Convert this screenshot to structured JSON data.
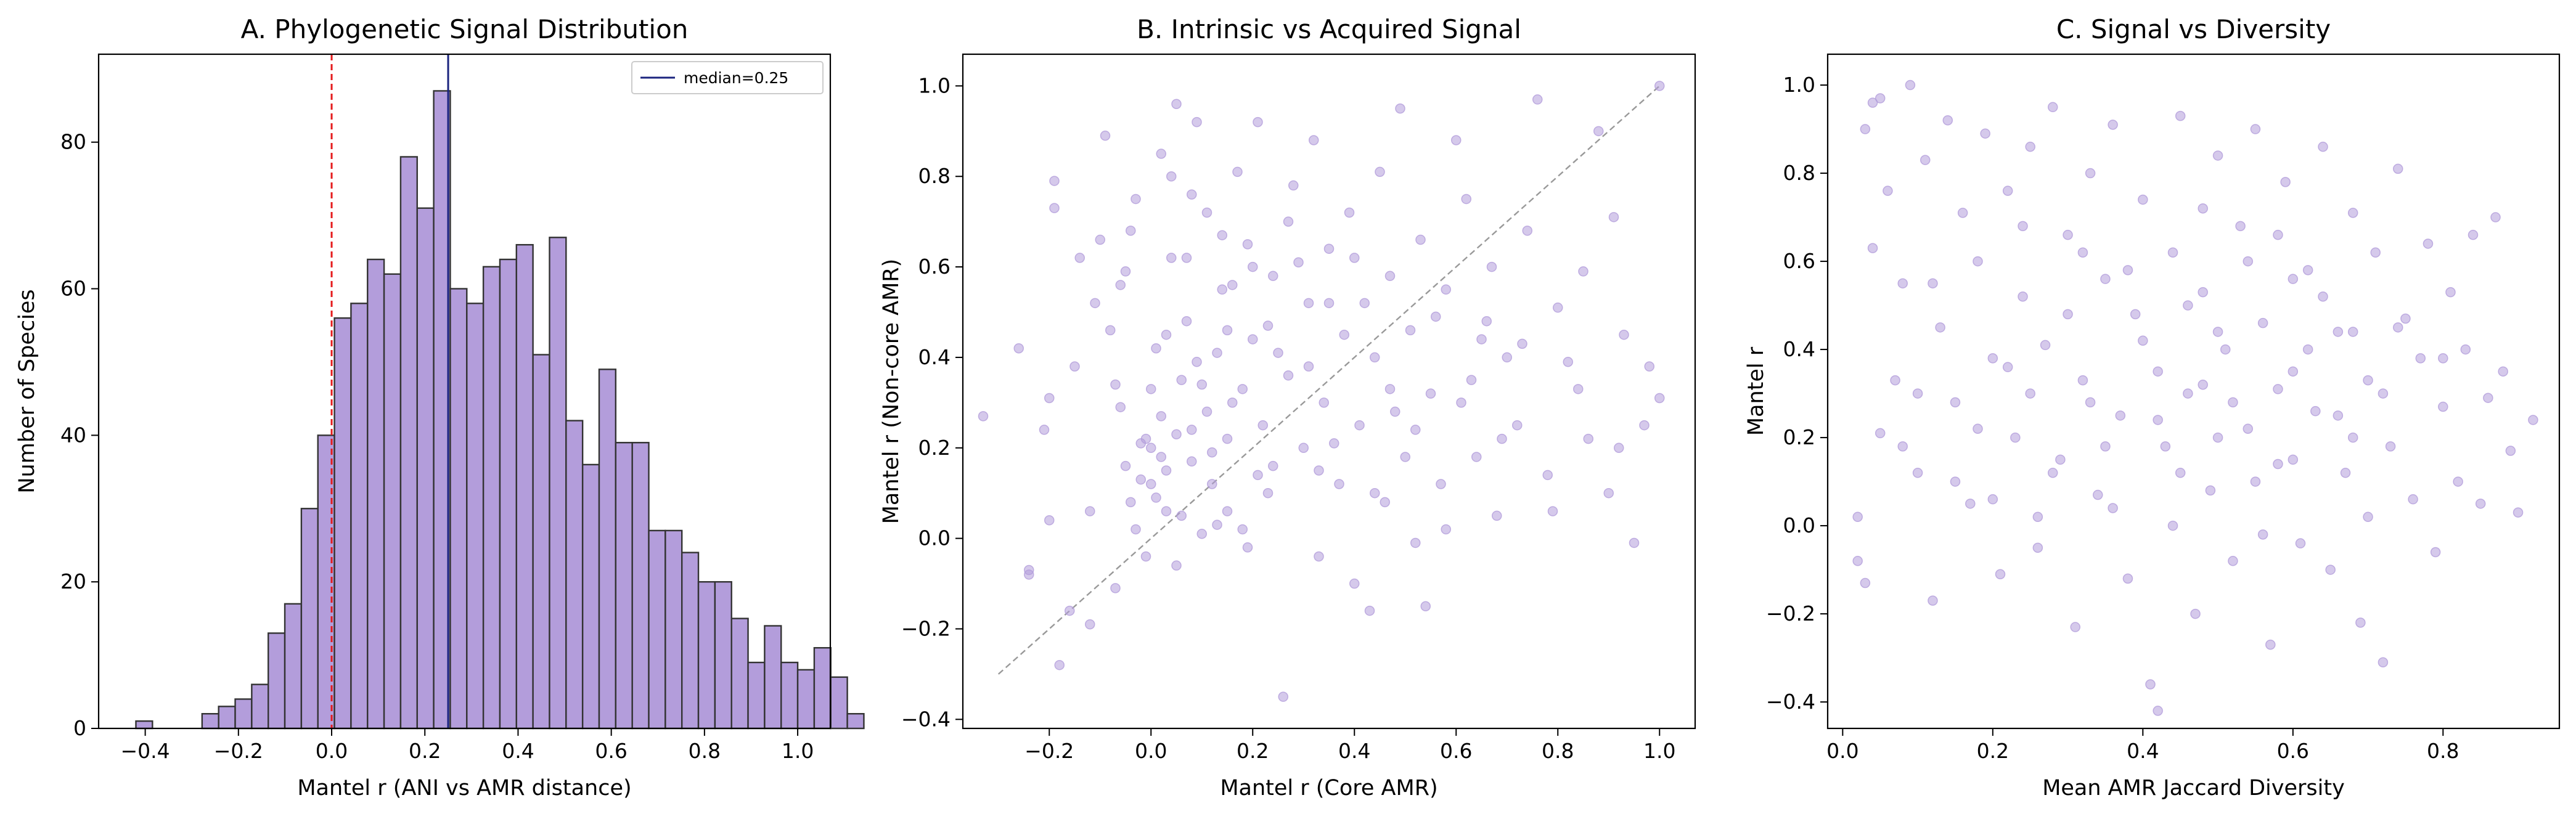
{
  "colors": {
    "bar_fill": "#b39ddb",
    "bar_edge": "#333333",
    "point": "#b39ddb",
    "zero_line": "#e41a1c",
    "median_line": "#1a237e",
    "diagonal": "#999999"
  },
  "chart_data": [
    {
      "type": "bar",
      "subtype": "histogram",
      "title": "A. Phylogenetic Signal Distribution",
      "xlabel": "Mantel r (ANI vs AMR distance)",
      "ylabel": "Number of Species",
      "xlim": [
        -0.5,
        1.07
      ],
      "ylim": [
        0,
        92
      ],
      "xticks": [
        -0.4,
        -0.2,
        0.0,
        0.2,
        0.4,
        0.6,
        0.8,
        1.0
      ],
      "xtick_labels": [
        "−0.4",
        "−0.2",
        "0.0",
        "0.2",
        "0.4",
        "0.6",
        "0.8",
        "1.0"
      ],
      "yticks": [
        0,
        20,
        40,
        60,
        80
      ],
      "ytick_labels": [
        "0",
        "20",
        "40",
        "60",
        "80"
      ],
      "bin_start": -0.42,
      "bin_width": 0.0355,
      "values": [
        1,
        0,
        0,
        0,
        2,
        3,
        4,
        6,
        13,
        17,
        30,
        40,
        56,
        58,
        64,
        62,
        78,
        71,
        87,
        60,
        58,
        63,
        64,
        66,
        51,
        67,
        42,
        36,
        49,
        39,
        39,
        27,
        27,
        24,
        20,
        20,
        15,
        9,
        14,
        9,
        8,
        11,
        7,
        2
      ],
      "vlines": [
        {
          "x": 0.0,
          "style": "dashed",
          "color": "#e41a1c"
        },
        {
          "x": 0.25,
          "style": "solid",
          "color": "#1a237e",
          "label": "median=0.25"
        }
      ],
      "legend": {
        "position": "upper right",
        "entries": [
          "median=0.25"
        ]
      },
      "grid": false
    },
    {
      "type": "scatter",
      "title": "B. Intrinsic vs Acquired Signal",
      "xlabel": "Mantel r (Core AMR)",
      "ylabel": "Mantel r (Non-core AMR)",
      "xlim": [
        -0.37,
        1.07
      ],
      "ylim": [
        -0.42,
        1.07
      ],
      "xticks": [
        -0.2,
        0.0,
        0.2,
        0.4,
        0.6,
        0.8,
        1.0
      ],
      "xtick_labels": [
        "−0.2",
        "0.0",
        "0.2",
        "0.4",
        "0.6",
        "0.8",
        "1.0"
      ],
      "yticks": [
        -0.4,
        -0.2,
        0.0,
        0.2,
        0.4,
        0.6,
        0.8,
        1.0
      ],
      "ytick_labels": [
        "−0.4",
        "−0.2",
        "0.0",
        "0.2",
        "0.4",
        "0.6",
        "0.8",
        "1.0"
      ],
      "diagonal": {
        "from": [
          -0.3,
          -0.3
        ],
        "to": [
          1.0,
          1.0
        ],
        "style": "dashed"
      },
      "grid": false,
      "points": [
        [
          -0.33,
          0.27
        ],
        [
          -0.26,
          0.42
        ],
        [
          -0.24,
          -0.08
        ],
        [
          -0.24,
          -0.07
        ],
        [
          -0.21,
          0.24
        ],
        [
          -0.2,
          0.31
        ],
        [
          -0.19,
          0.73
        ],
        [
          -0.19,
          0.79
        ],
        [
          -0.2,
          0.04
        ],
        [
          -0.18,
          -0.28
        ],
        [
          -0.16,
          -0.16
        ],
        [
          -0.15,
          0.38
        ],
        [
          -0.14,
          0.62
        ],
        [
          -0.12,
          0.06
        ],
        [
          -0.11,
          0.52
        ],
        [
          -0.1,
          0.66
        ],
        [
          -0.09,
          0.89
        ],
        [
          -0.08,
          0.46
        ],
        [
          -0.07,
          0.34
        ],
        [
          -0.06,
          0.29
        ],
        [
          -0.05,
          0.16
        ],
        [
          -0.05,
          0.59
        ],
        [
          -0.04,
          0.68
        ],
        [
          -0.03,
          0.02
        ],
        [
          -0.03,
          0.75
        ],
        [
          -0.02,
          0.13
        ],
        [
          -0.01,
          0.22
        ],
        [
          0.0,
          0.2
        ],
        [
          0.0,
          0.33
        ],
        [
          0.01,
          0.09
        ],
        [
          0.02,
          0.27
        ],
        [
          0.03,
          0.15
        ],
        [
          0.03,
          0.45
        ],
        [
          0.04,
          0.8
        ],
        [
          0.05,
          0.96
        ],
        [
          0.06,
          0.05
        ],
        [
          0.07,
          0.62
        ],
        [
          0.08,
          0.24
        ],
        [
          0.09,
          0.92
        ],
        [
          0.1,
          0.34
        ],
        [
          0.11,
          0.72
        ],
        [
          0.12,
          0.12
        ],
        [
          0.13,
          0.41
        ],
        [
          0.14,
          0.55
        ],
        [
          0.15,
          0.06
        ],
        [
          0.16,
          0.3
        ],
        [
          0.17,
          0.81
        ],
        [
          0.18,
          0.02
        ],
        [
          0.19,
          0.65
        ],
        [
          0.2,
          0.44
        ],
        [
          0.21,
          0.92
        ],
        [
          0.22,
          0.25
        ],
        [
          0.23,
          0.1
        ],
        [
          0.24,
          0.58
        ],
        [
          0.26,
          -0.35
        ],
        [
          0.27,
          0.36
        ],
        [
          0.28,
          0.78
        ],
        [
          0.3,
          0.2
        ],
        [
          0.31,
          0.52
        ],
        [
          0.32,
          0.88
        ],
        [
          0.33,
          -0.04
        ],
        [
          0.34,
          0.3
        ],
        [
          0.35,
          0.64
        ],
        [
          0.37,
          0.12
        ],
        [
          0.38,
          0.45
        ],
        [
          0.39,
          0.72
        ],
        [
          0.4,
          -0.1
        ],
        [
          0.41,
          0.25
        ],
        [
          0.42,
          0.52
        ],
        [
          0.43,
          -0.16
        ],
        [
          0.44,
          0.4
        ],
        [
          0.45,
          0.81
        ],
        [
          0.46,
          0.08
        ],
        [
          0.47,
          0.58
        ],
        [
          0.48,
          0.28
        ],
        [
          0.49,
          0.95
        ],
        [
          0.5,
          0.18
        ],
        [
          0.51,
          0.46
        ],
        [
          0.52,
          -0.01
        ],
        [
          0.53,
          0.66
        ],
        [
          0.54,
          -0.15
        ],
        [
          0.55,
          0.32
        ],
        [
          0.57,
          0.12
        ],
        [
          0.58,
          0.55
        ],
        [
          0.6,
          0.88
        ],
        [
          0.61,
          0.3
        ],
        [
          0.62,
          0.75
        ],
        [
          0.64,
          0.18
        ],
        [
          0.65,
          0.44
        ],
        [
          0.67,
          0.6
        ],
        [
          0.68,
          0.05
        ],
        [
          0.7,
          0.4
        ],
        [
          0.72,
          0.25
        ],
        [
          0.74,
          0.68
        ],
        [
          0.76,
          0.97
        ],
        [
          0.78,
          0.14
        ],
        [
          0.8,
          0.51
        ],
        [
          0.82,
          0.39
        ],
        [
          0.84,
          0.33
        ],
        [
          0.86,
          0.22
        ],
        [
          0.88,
          0.9
        ],
        [
          0.9,
          0.1
        ],
        [
          0.91,
          0.71
        ],
        [
          0.93,
          0.45
        ],
        [
          0.95,
          -0.01
        ],
        [
          0.97,
          0.25
        ],
        [
          1.0,
          0.31
        ],
        [
          1.0,
          1.0
        ],
        [
          0.02,
          0.18
        ],
        [
          0.05,
          0.23
        ],
        [
          -0.02,
          0.21
        ],
        [
          0.08,
          0.17
        ],
        [
          0.0,
          0.12
        ],
        [
          0.11,
          0.28
        ],
        [
          0.06,
          0.35
        ],
        [
          -0.04,
          0.08
        ],
        [
          0.15,
          0.22
        ],
        [
          0.03,
          0.06
        ],
        [
          0.09,
          0.39
        ],
        [
          0.12,
          0.19
        ],
        [
          0.18,
          0.33
        ],
        [
          0.07,
          0.48
        ],
        [
          0.14,
          0.67
        ],
        [
          0.21,
          0.14
        ],
        [
          0.25,
          0.41
        ],
        [
          0.16,
          0.56
        ],
        [
          0.01,
          0.42
        ],
        [
          -0.06,
          0.56
        ],
        [
          0.04,
          0.62
        ],
        [
          0.13,
          0.03
        ],
        [
          0.19,
          -0.02
        ],
        [
          0.23,
          0.47
        ],
        [
          0.29,
          0.61
        ],
        [
          0.36,
          0.21
        ],
        [
          0.44,
          0.1
        ],
        [
          0.56,
          0.49
        ],
        [
          0.63,
          0.35
        ],
        [
          0.69,
          0.22
        ],
        [
          0.73,
          0.43
        ],
        [
          0.79,
          0.06
        ],
        [
          0.85,
          0.59
        ],
        [
          0.92,
          0.2
        ],
        [
          0.98,
          0.38
        ],
        [
          0.27,
          0.7
        ],
        [
          0.33,
          0.15
        ],
        [
          0.4,
          0.62
        ],
        [
          0.47,
          0.33
        ],
        [
          0.52,
          0.24
        ],
        [
          0.58,
          0.02
        ],
        [
          0.66,
          0.48
        ],
        [
          0.1,
          0.01
        ],
        [
          -0.01,
          -0.04
        ],
        [
          -0.07,
          -0.11
        ],
        [
          -0.12,
          -0.19
        ],
        [
          0.05,
          -0.06
        ],
        [
          0.15,
          0.46
        ],
        [
          0.2,
          0.6
        ],
        [
          0.08,
          0.76
        ],
        [
          0.02,
          0.85
        ],
        [
          0.24,
          0.16
        ],
        [
          0.31,
          0.38
        ],
        [
          0.35,
          0.52
        ]
      ]
    },
    {
      "type": "scatter",
      "title": "C. Signal vs Diversity",
      "xlabel": "Mean AMR Jaccard Diversity",
      "ylabel": "Mantel r",
      "xlim": [
        -0.02,
        0.955
      ],
      "ylim": [
        -0.46,
        1.07
      ],
      "xticks": [
        0.0,
        0.2,
        0.4,
        0.6,
        0.8
      ],
      "xtick_labels": [
        "0.0",
        "0.2",
        "0.4",
        "0.6",
        "0.8"
      ],
      "yticks": [
        -0.4,
        -0.2,
        0.0,
        0.2,
        0.4,
        0.6,
        0.8,
        1.0
      ],
      "ytick_labels": [
        "−0.4",
        "−0.2",
        "0.0",
        "0.2",
        "0.4",
        "0.6",
        "0.8",
        "1.0"
      ],
      "grid": false,
      "points": [
        [
          0.02,
          0.02
        ],
        [
          0.02,
          -0.08
        ],
        [
          0.03,
          -0.13
        ],
        [
          0.03,
          0.9
        ],
        [
          0.04,
          0.96
        ],
        [
          0.04,
          0.63
        ],
        [
          0.05,
          0.21
        ],
        [
          0.05,
          0.97
        ],
        [
          0.06,
          0.76
        ],
        [
          0.07,
          0.33
        ],
        [
          0.08,
          0.55
        ],
        [
          0.09,
          1.0
        ],
        [
          0.1,
          0.12
        ],
        [
          0.11,
          0.83
        ],
        [
          0.12,
          -0.17
        ],
        [
          0.13,
          0.45
        ],
        [
          0.14,
          0.92
        ],
        [
          0.15,
          0.28
        ],
        [
          0.16,
          0.71
        ],
        [
          0.17,
          0.05
        ],
        [
          0.18,
          0.6
        ],
        [
          0.19,
          0.89
        ],
        [
          0.2,
          0.38
        ],
        [
          0.21,
          -0.11
        ],
        [
          0.22,
          0.76
        ],
        [
          0.23,
          0.2
        ],
        [
          0.24,
          0.52
        ],
        [
          0.25,
          0.86
        ],
        [
          0.26,
          -0.05
        ],
        [
          0.27,
          0.41
        ],
        [
          0.28,
          0.95
        ],
        [
          0.29,
          0.15
        ],
        [
          0.3,
          0.66
        ],
        [
          0.31,
          -0.23
        ],
        [
          0.32,
          0.33
        ],
        [
          0.33,
          0.8
        ],
        [
          0.34,
          0.07
        ],
        [
          0.35,
          0.56
        ],
        [
          0.36,
          0.91
        ],
        [
          0.37,
          0.25
        ],
        [
          0.38,
          -0.12
        ],
        [
          0.39,
          0.48
        ],
        [
          0.4,
          0.74
        ],
        [
          0.41,
          -0.36
        ],
        [
          0.42,
          -0.42
        ],
        [
          0.43,
          0.18
        ],
        [
          0.44,
          0.62
        ],
        [
          0.45,
          0.93
        ],
        [
          0.46,
          0.3
        ],
        [
          0.47,
          -0.2
        ],
        [
          0.48,
          0.53
        ],
        [
          0.49,
          0.08
        ],
        [
          0.5,
          0.84
        ],
        [
          0.51,
          0.4
        ],
        [
          0.52,
          -0.08
        ],
        [
          0.53,
          0.68
        ],
        [
          0.54,
          0.22
        ],
        [
          0.55,
          0.9
        ],
        [
          0.56,
          0.46
        ],
        [
          0.57,
          -0.27
        ],
        [
          0.58,
          0.14
        ],
        [
          0.59,
          0.78
        ],
        [
          0.6,
          0.35
        ],
        [
          0.61,
          -0.04
        ],
        [
          0.62,
          0.58
        ],
        [
          0.63,
          0.26
        ],
        [
          0.64,
          0.86
        ],
        [
          0.65,
          -0.1
        ],
        [
          0.66,
          0.44
        ],
        [
          0.67,
          0.12
        ],
        [
          0.68,
          0.71
        ],
        [
          0.69,
          -0.22
        ],
        [
          0.7,
          0.33
        ],
        [
          0.71,
          0.62
        ],
        [
          0.72,
          -0.31
        ],
        [
          0.73,
          0.18
        ],
        [
          0.74,
          0.81
        ],
        [
          0.75,
          0.47
        ],
        [
          0.76,
          0.06
        ],
        [
          0.77,
          0.38
        ],
        [
          0.78,
          0.64
        ],
        [
          0.79,
          -0.06
        ],
        [
          0.8,
          0.27
        ],
        [
          0.81,
          0.53
        ],
        [
          0.82,
          0.1
        ],
        [
          0.83,
          0.4
        ],
        [
          0.84,
          0.66
        ],
        [
          0.85,
          0.05
        ],
        [
          0.86,
          0.29
        ],
        [
          0.87,
          0.7
        ],
        [
          0.88,
          0.35
        ],
        [
          0.89,
          0.17
        ],
        [
          0.9,
          0.03
        ],
        [
          0.92,
          0.24
        ],
        [
          0.33,
          0.28
        ],
        [
          0.42,
          0.35
        ],
        [
          0.5,
          0.2
        ],
        [
          0.58,
          0.31
        ],
        [
          0.66,
          0.25
        ],
        [
          0.25,
          0.3
        ],
        [
          0.18,
          0.22
        ],
        [
          0.45,
          0.12
        ],
        [
          0.55,
          0.1
        ],
        [
          0.62,
          0.4
        ],
        [
          0.35,
          0.18
        ],
        [
          0.4,
          0.42
        ],
        [
          0.48,
          0.32
        ],
        [
          0.52,
          0.28
        ],
        [
          0.6,
          0.15
        ],
        [
          0.68,
          0.2
        ],
        [
          0.72,
          0.3
        ],
        [
          0.28,
          0.12
        ],
        [
          0.22,
          0.36
        ],
        [
          0.15,
          0.1
        ],
        [
          0.1,
          0.3
        ],
        [
          0.08,
          0.18
        ],
        [
          0.12,
          0.55
        ],
        [
          0.3,
          0.48
        ],
        [
          0.38,
          0.58
        ],
        [
          0.46,
          0.5
        ],
        [
          0.54,
          0.6
        ],
        [
          0.64,
          0.52
        ],
        [
          0.74,
          0.45
        ],
        [
          0.8,
          0.38
        ],
        [
          0.36,
          0.04
        ],
        [
          0.44,
          0.0
        ],
        [
          0.56,
          -0.02
        ],
        [
          0.7,
          0.02
        ],
        [
          0.26,
          0.02
        ],
        [
          0.2,
          0.06
        ],
        [
          0.5,
          0.44
        ],
        [
          0.42,
          0.24
        ],
        [
          0.6,
          0.56
        ],
        [
          0.32,
          0.62
        ],
        [
          0.24,
          0.68
        ],
        [
          0.48,
          0.72
        ],
        [
          0.58,
          0.66
        ],
        [
          0.68,
          0.44
        ]
      ]
    }
  ]
}
